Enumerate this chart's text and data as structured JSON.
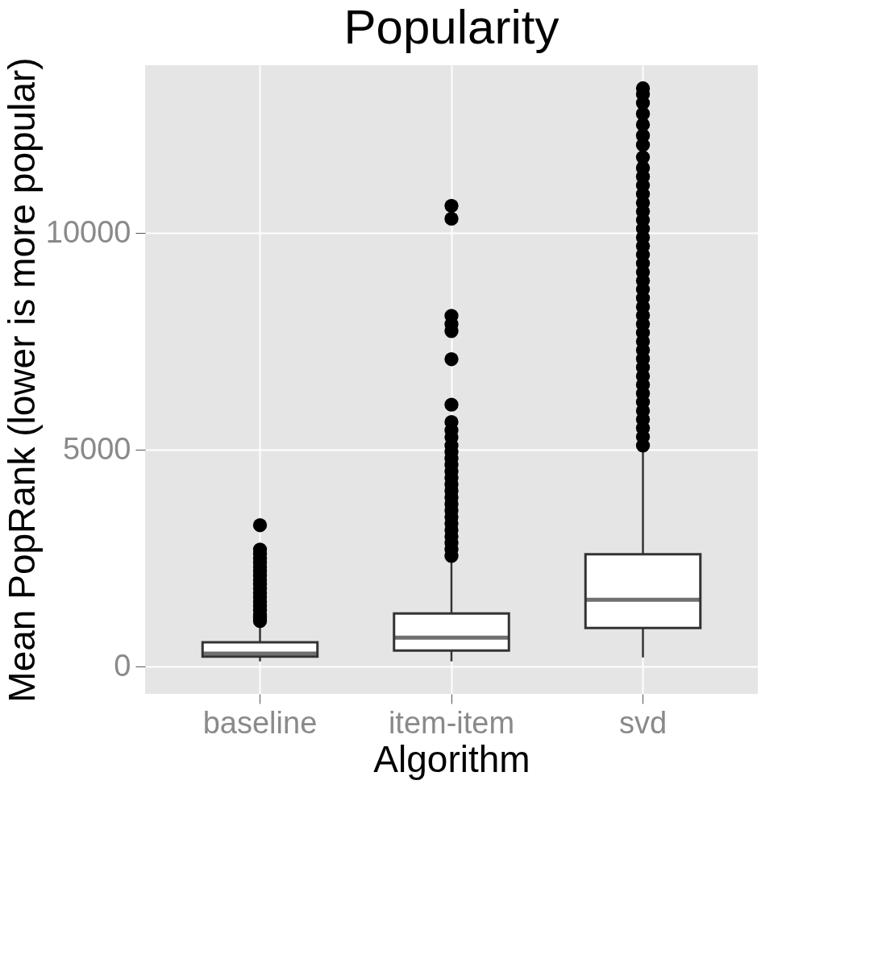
{
  "chart_data": {
    "type": "box",
    "title": "Popularity",
    "xlabel": "Algorithm",
    "ylabel": "Mean PopRank (lower is more popular)",
    "categories": [
      "baseline",
      "item-item",
      "svd"
    ],
    "boxes": [
      {
        "low": 120,
        "q1": 230,
        "median": 300,
        "q3": 560,
        "high": 1000,
        "outliers": [
          1050,
          1100,
          1150,
          1200,
          1300,
          1400,
          1500,
          1600,
          1700,
          1800,
          1900,
          2000,
          2100,
          2200,
          2300,
          2400,
          2500,
          2600,
          2700,
          3260
        ]
      },
      {
        "low": 120,
        "q1": 370,
        "median": 665,
        "q3": 1225,
        "high": 2490,
        "outliers": [
          2550,
          2700,
          2850,
          3000,
          3150,
          3300,
          3450,
          3600,
          3750,
          3900,
          4050,
          4200,
          4350,
          4500,
          4650,
          4800,
          4950,
          5100,
          5290,
          5450,
          5640,
          6040,
          7090,
          7740,
          7900,
          8090,
          10330,
          10630
        ]
      },
      {
        "low": 210,
        "q1": 890,
        "median": 1540,
        "q3": 2590,
        "high": 5020,
        "outliers": [
          5100,
          5300,
          5500,
          5700,
          5900,
          6100,
          6300,
          6500,
          6700,
          6900,
          7100,
          7300,
          7500,
          7700,
          7900,
          8100,
          8300,
          8500,
          8700,
          8900,
          9100,
          9300,
          9500,
          9700,
          9900,
          10100,
          10300,
          10500,
          10700,
          10900,
          11100,
          11300,
          11500,
          11750,
          12030,
          12250,
          12500,
          12750,
          13000,
          13200,
          13340
        ]
      }
    ],
    "ylim": [
      -630,
      13870
    ],
    "yticks": [
      0,
      5000,
      10000
    ],
    "grid": true
  }
}
